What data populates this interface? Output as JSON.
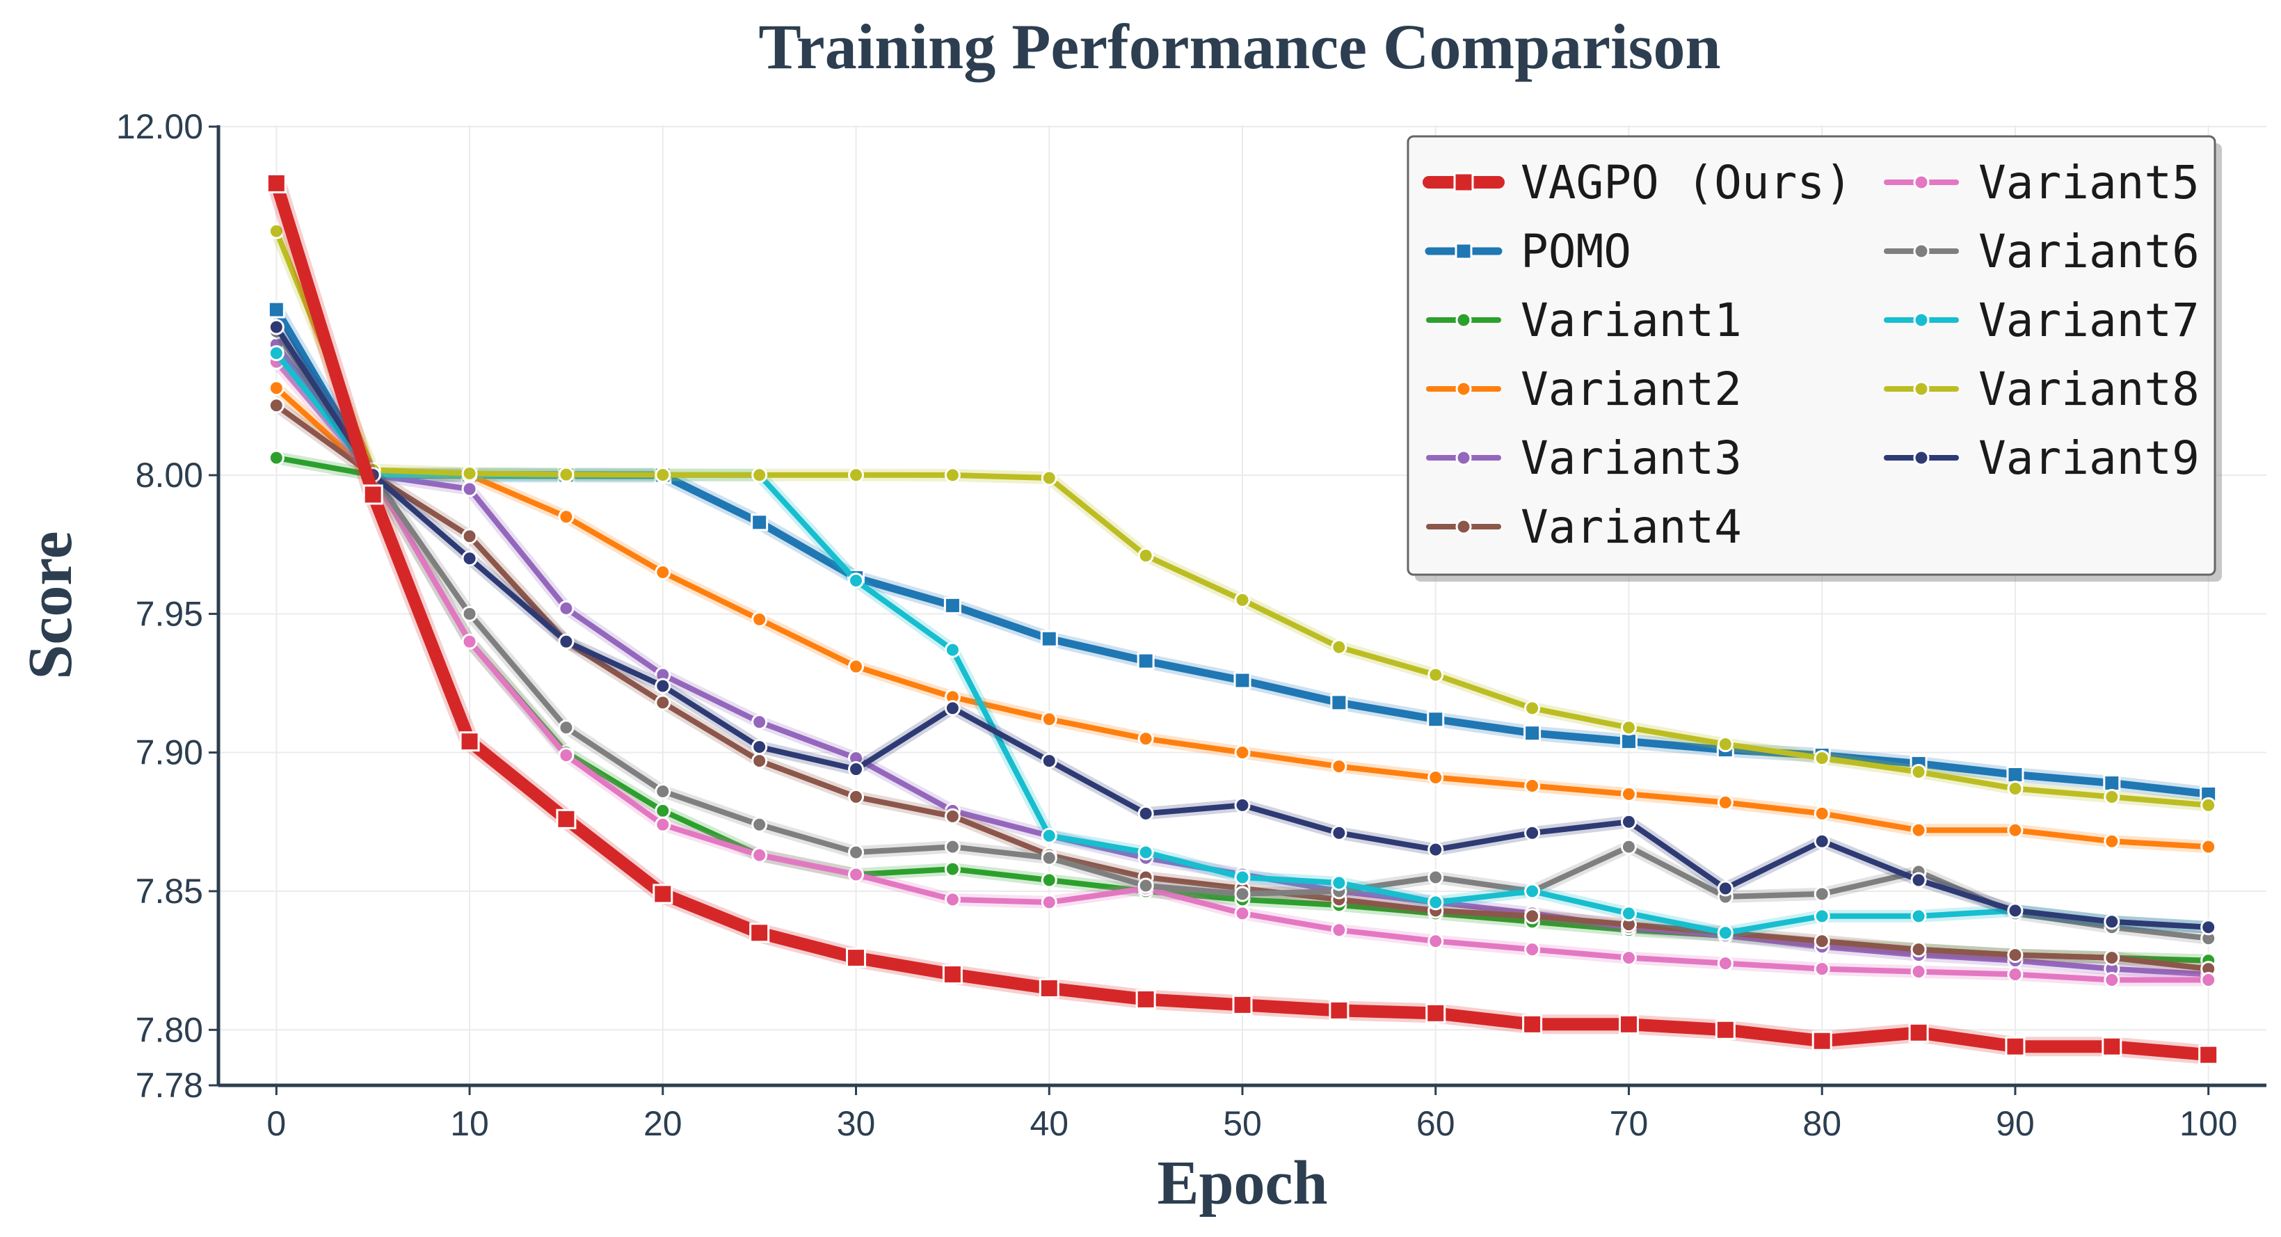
{
  "chart_data": {
    "type": "line",
    "title": "Training Performance Comparison",
    "xlabel": "Epoch",
    "ylabel": "Score",
    "x_ticks": [
      "0",
      "10",
      "20",
      "30",
      "40",
      "50",
      "60",
      "70",
      "80",
      "90",
      "100"
    ],
    "y_ticks": [
      "7.78",
      "7.80",
      "7.85",
      "7.90",
      "7.95",
      "8.00",
      "12.00"
    ],
    "y_scale": "broken-linear (7.78–8.00 linear, compressed 8.00–12.00)",
    "xlim": [
      -3,
      103
    ],
    "ylim": [
      7.78,
      12.0
    ],
    "grid": true,
    "legend": "top-right",
    "x": [
      0,
      5,
      10,
      15,
      20,
      25,
      30,
      35,
      40,
      45,
      50,
      55,
      60,
      65,
      70,
      75,
      80,
      85,
      90,
      95,
      100
    ],
    "series": [
      {
        "name": "VAGPO (Ours)",
        "color": "#d62728",
        "marker": "square",
        "highlight": true,
        "values": [
          11.35,
          7.993,
          7.904,
          7.876,
          7.849,
          7.835,
          7.826,
          7.82,
          7.815,
          7.811,
          7.809,
          7.807,
          7.806,
          7.802,
          7.802,
          7.8,
          7.796,
          7.799,
          7.794,
          7.794,
          7.791
        ]
      },
      {
        "name": "POMO",
        "color": "#1f77b4",
        "marker": "square",
        "values": [
          9.9,
          8.005,
          8.003,
          8.001,
          8.0,
          7.983,
          7.963,
          7.953,
          7.941,
          7.933,
          7.926,
          7.918,
          7.912,
          7.907,
          7.904,
          7.901,
          7.899,
          7.896,
          7.892,
          7.889,
          7.885
        ]
      },
      {
        "name": "Variant1",
        "color": "#2ca02c",
        "marker": "circle",
        "values": [
          8.2,
          8.0,
          7.94,
          7.9,
          7.879,
          7.863,
          7.856,
          7.858,
          7.854,
          7.85,
          7.847,
          7.845,
          7.842,
          7.839,
          7.836,
          7.834,
          7.831,
          7.829,
          7.827,
          7.826,
          7.825
        ]
      },
      {
        "name": "Variant2",
        "color": "#ff7f0e",
        "marker": "circle",
        "values": [
          9.0,
          8.003,
          8.0,
          7.985,
          7.965,
          7.948,
          7.931,
          7.92,
          7.912,
          7.905,
          7.9,
          7.895,
          7.891,
          7.888,
          7.885,
          7.882,
          7.878,
          7.872,
          7.872,
          7.868,
          7.866
        ]
      },
      {
        "name": "Variant3",
        "color": "#9467bd",
        "marker": "circle",
        "values": [
          9.5,
          8.003,
          7.995,
          7.952,
          7.928,
          7.911,
          7.898,
          7.879,
          7.87,
          7.862,
          7.856,
          7.85,
          7.846,
          7.842,
          7.837,
          7.834,
          7.83,
          7.827,
          7.825,
          7.822,
          7.82
        ]
      },
      {
        "name": "Variant4",
        "color": "#8c564b",
        "marker": "circle",
        "values": [
          8.8,
          8.0,
          7.978,
          7.94,
          7.918,
          7.897,
          7.884,
          7.877,
          7.863,
          7.855,
          7.851,
          7.847,
          7.843,
          7.841,
          7.838,
          7.835,
          7.832,
          7.829,
          7.827,
          7.826,
          7.822
        ]
      },
      {
        "name": "Variant5",
        "color": "#e377c2",
        "marker": "circle",
        "values": [
          9.3,
          8.004,
          7.94,
          7.899,
          7.874,
          7.863,
          7.856,
          7.847,
          7.846,
          7.851,
          7.842,
          7.836,
          7.832,
          7.829,
          7.826,
          7.824,
          7.822,
          7.821,
          7.82,
          7.818,
          7.818
        ]
      },
      {
        "name": "Variant6",
        "color": "#7f7f7f",
        "marker": "circle",
        "values": [
          9.65,
          8.0,
          7.95,
          7.909,
          7.886,
          7.874,
          7.864,
          7.866,
          7.862,
          7.852,
          7.849,
          7.85,
          7.855,
          7.85,
          7.866,
          7.848,
          7.849,
          7.857,
          7.842,
          7.837,
          7.833
        ]
      },
      {
        "name": "Variant7",
        "color": "#17becf",
        "marker": "circle",
        "values": [
          9.4,
          8.006,
          8.004,
          8.003,
          8.002,
          8.002,
          7.962,
          7.937,
          7.87,
          7.864,
          7.855,
          7.853,
          7.846,
          7.85,
          7.842,
          7.835,
          7.841,
          7.841,
          7.843,
          7.839,
          7.837
        ]
      },
      {
        "name": "Variant8",
        "color": "#bcbd22",
        "marker": "circle",
        "values": [
          10.8,
          8.06,
          8.02,
          8.007,
          8.004,
          8.002,
          8.002,
          8.001,
          7.999,
          7.971,
          7.955,
          7.938,
          7.928,
          7.916,
          7.909,
          7.903,
          7.898,
          7.893,
          7.887,
          7.884,
          7.881
        ]
      },
      {
        "name": "Variant9",
        "color": "#2e3a73",
        "marker": "circle",
        "values": [
          9.7,
          8.003,
          7.97,
          7.94,
          7.924,
          7.902,
          7.894,
          7.916,
          7.897,
          7.878,
          7.881,
          7.871,
          7.865,
          7.871,
          7.875,
          7.851,
          7.868,
          7.854,
          7.843,
          7.839,
          7.837
        ]
      }
    ]
  }
}
